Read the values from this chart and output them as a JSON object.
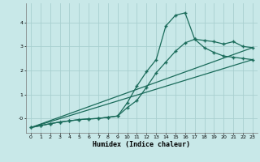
{
  "xlabel": "Humidex (Indice chaleur)",
  "bg_color": "#c8e8e8",
  "grid_color": "#a8d0d0",
  "line_color": "#1a6b5a",
  "xlim": [
    -0.5,
    23.5
  ],
  "ylim": [
    -0.6,
    4.8
  ],
  "xticks": [
    0,
    1,
    2,
    3,
    4,
    5,
    6,
    7,
    8,
    9,
    10,
    11,
    12,
    13,
    14,
    15,
    16,
    17,
    18,
    19,
    20,
    21,
    22,
    23
  ],
  "yticks": [
    0,
    1,
    2,
    3,
    4
  ],
  "ytick_labels": [
    "-0",
    "1",
    "2",
    "3",
    "4"
  ],
  "line1_x": [
    0,
    1,
    2,
    3,
    4,
    5,
    6,
    7,
    8,
    9,
    10,
    11,
    12,
    13,
    14,
    15,
    16,
    17,
    18,
    19,
    20,
    21,
    22,
    23
  ],
  "line1_y": [
    -0.38,
    -0.3,
    -0.22,
    -0.15,
    -0.1,
    -0.05,
    -0.02,
    0.0,
    0.05,
    0.1,
    0.65,
    1.35,
    1.95,
    2.45,
    3.85,
    4.3,
    4.4,
    3.3,
    3.25,
    3.2,
    3.1,
    3.2,
    3.0,
    2.95
  ],
  "line2_x": [
    0,
    1,
    2,
    3,
    4,
    5,
    6,
    7,
    8,
    9,
    10,
    11,
    12,
    13,
    14,
    15,
    16,
    17,
    18,
    19,
    20,
    21,
    22,
    23
  ],
  "line2_y": [
    -0.38,
    -0.3,
    -0.22,
    -0.15,
    -0.1,
    -0.05,
    -0.02,
    0.0,
    0.05,
    0.1,
    0.45,
    0.75,
    1.3,
    1.9,
    2.35,
    2.8,
    3.15,
    3.3,
    2.95,
    2.75,
    2.6,
    2.55,
    2.5,
    2.45
  ],
  "line3_x": [
    0,
    23
  ],
  "line3_y": [
    -0.38,
    2.95
  ],
  "line4_x": [
    0,
    23
  ],
  "line4_y": [
    -0.38,
    2.45
  ]
}
